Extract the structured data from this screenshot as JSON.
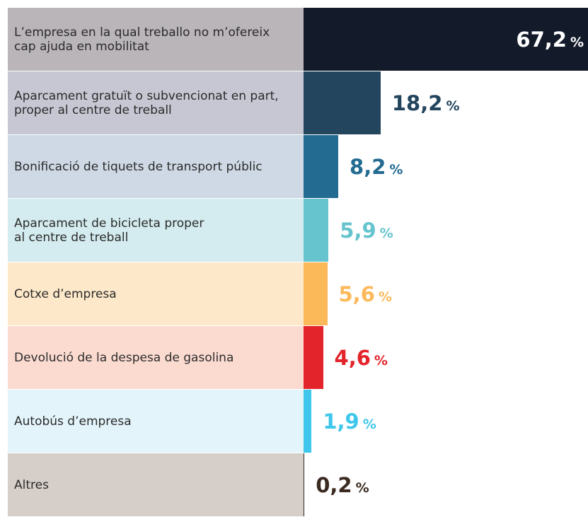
{
  "chart_data": {
    "type": "bar",
    "orientation": "horizontal",
    "categories": [
      "L’empresa en la qual treballo no m’ofereix\ncap ajuda en mobilitat",
      "Aparcament gratuït o subvencionat en part,\nproper al centre de treball",
      "Bonificació de tiquets de transport públic",
      "Aparcament de bicicleta proper\nal centre de treball",
      "Cotxe d’empresa",
      "Devolució de la despesa de gasolina",
      "Autobús d’empresa",
      "Altres"
    ],
    "values": [
      67.2,
      18.2,
      8.2,
      5.9,
      5.6,
      4.6,
      1.9,
      0.2
    ],
    "value_labels": [
      "67,2",
      "18,2",
      "8,2",
      "5,9",
      "5,6",
      "4,6",
      "1,9",
      "0,2"
    ],
    "unit": "%",
    "colors": [
      "#131a2a",
      "#23455d",
      "#236b91",
      "#65c4cd",
      "#fbb95a",
      "#e3242b",
      "#3ec6eb",
      "#3a2a20"
    ],
    "row_colors": [
      "#b9b5b9",
      "#c6c7d3",
      "#ced9e5",
      "#d4ecef",
      "#fde8c9",
      "#fbdbd0",
      "#e3f4fa",
      "#d6cec9"
    ],
    "xlim": [
      0,
      67.2
    ]
  }
}
